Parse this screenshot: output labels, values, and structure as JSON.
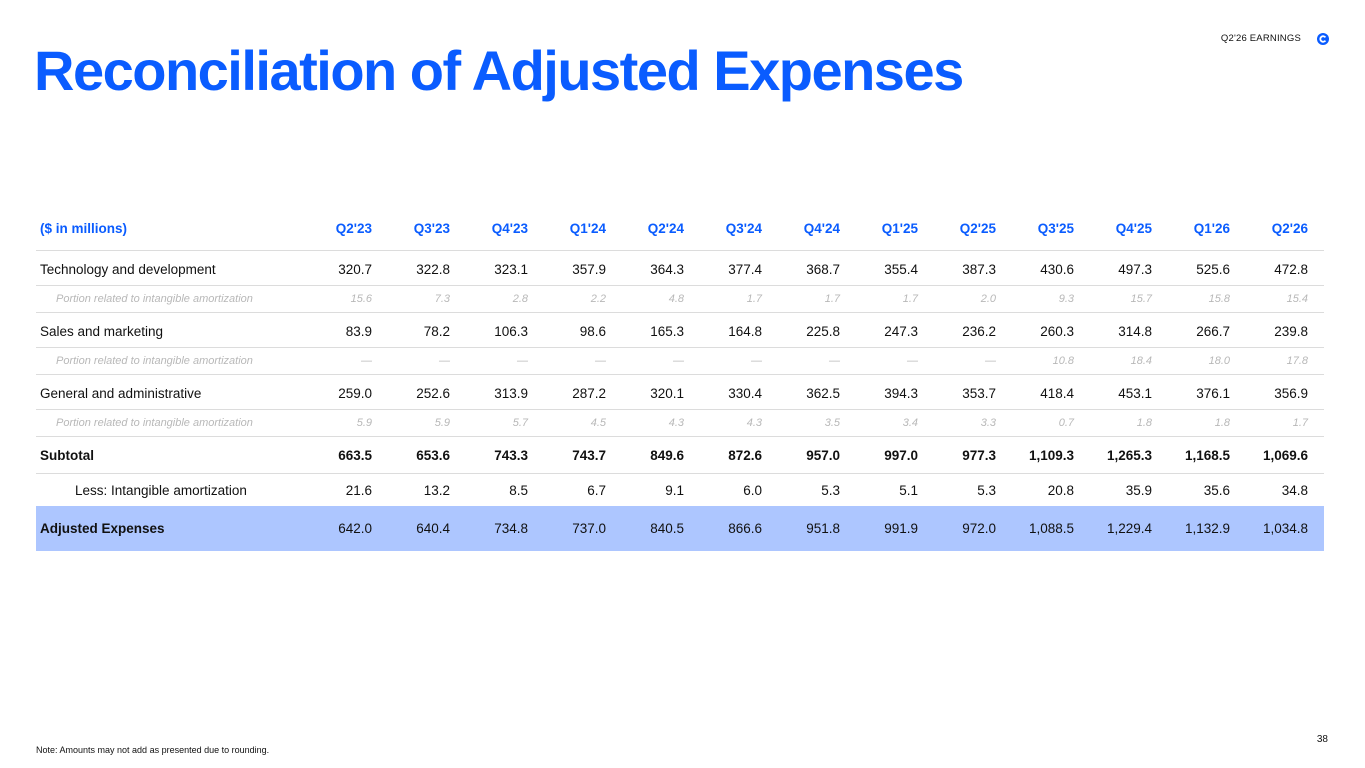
{
  "header": {
    "title": "Reconciliation of Adjusted Expenses",
    "earnings_label": "Q2'26 EARNINGS",
    "logo_icon": "coinbase-c-logo",
    "brand_color": "#0a5cff"
  },
  "table": {
    "unit_label": "($ in millions)",
    "columns": [
      "Q2'23",
      "Q3'23",
      "Q4'23",
      "Q1'24",
      "Q2'24",
      "Q3'24",
      "Q4'24",
      "Q1'25",
      "Q2'25",
      "Q3'25",
      "Q4'25",
      "Q1'26",
      "Q2'26"
    ],
    "rows": [
      {
        "label": "Technology and development",
        "values": [
          "320.7",
          "322.8",
          "323.1",
          "357.9",
          "364.3",
          "377.4",
          "368.7",
          "355.4",
          "387.3",
          "430.6",
          "497.3",
          "525.6",
          "472.8"
        ]
      },
      {
        "label": "Portion related to intangible amortization",
        "values": [
          "15.6",
          "7.3",
          "2.8",
          "2.2",
          "4.8",
          "1.7",
          "1.7",
          "1.7",
          "2.0",
          "9.3",
          "15.7",
          "15.8",
          "15.4"
        ]
      },
      {
        "label": "Sales and marketing",
        "values": [
          "83.9",
          "78.2",
          "106.3",
          "98.6",
          "165.3",
          "164.8",
          "225.8",
          "247.3",
          "236.2",
          "260.3",
          "314.8",
          "266.7",
          "239.8"
        ]
      },
      {
        "label": "Portion related to intangible amortization",
        "values": [
          "—",
          "—",
          "—",
          "—",
          "—",
          "—",
          "—",
          "—",
          "—",
          "10.8",
          "18.4",
          "18.0",
          "17.8"
        ]
      },
      {
        "label": "General and administrative",
        "values": [
          "259.0",
          "252.6",
          "313.9",
          "287.2",
          "320.1",
          "330.4",
          "362.5",
          "394.3",
          "353.7",
          "418.4",
          "453.1",
          "376.1",
          "356.9"
        ]
      },
      {
        "label": "Portion related to intangible amortization",
        "values": [
          "5.9",
          "5.9",
          "5.7",
          "4.5",
          "4.3",
          "4.3",
          "3.5",
          "3.4",
          "3.3",
          "0.7",
          "1.8",
          "1.8",
          "1.7"
        ]
      },
      {
        "label": "Subtotal",
        "values": [
          "663.5",
          "653.6",
          "743.3",
          "743.7",
          "849.6",
          "872.6",
          "957.0",
          "997.0",
          "977.3",
          "1,109.3",
          "1,265.3",
          "1,168.5",
          "1,069.6"
        ]
      },
      {
        "label": "Less: Intangible amortization",
        "values": [
          "21.6",
          "13.2",
          "8.5",
          "6.7",
          "9.1",
          "6.0",
          "5.3",
          "5.1",
          "5.3",
          "20.8",
          "35.9",
          "35.6",
          "34.8"
        ]
      },
      {
        "label": "Adjusted Expenses",
        "values": [
          "642.0",
          "640.4",
          "734.8",
          "737.0",
          "840.5",
          "866.6",
          "951.8",
          "991.9",
          "972.0",
          "1,088.5",
          "1,229.4",
          "1,132.9",
          "1,034.8"
        ]
      }
    ]
  },
  "footer": {
    "note": "Note: Amounts may not add as presented due to rounding.",
    "page_number": "38"
  }
}
